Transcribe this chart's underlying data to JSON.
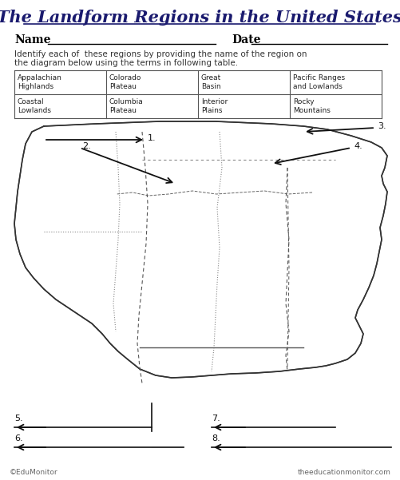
{
  "title": "The Landform Regions in the United States",
  "title_fontsize": 15,
  "title_color": "#1a1a6e",
  "title_font": "serif",
  "name_label": "Name",
  "date_label": "Date",
  "instruction": "Identify each of  these regions by providing the name of the region on\nthe diagram below using the terms in following table.",
  "table_data": [
    [
      "Appalachian\nHighlands",
      "Colorado\nPlateau",
      "Great\nBasin",
      "Pacific Ranges\nand Lowlands"
    ],
    [
      "Coastal\nLowlands",
      "Columbia\nPlateau",
      "Interior\nPlains",
      "Rocky\nMountains"
    ]
  ],
  "footer_left": "©EduMonitor",
  "footer_right": "theeducationmonitor.com",
  "bg_color": "#ffffff",
  "text_color": "#222222",
  "arrow_color": "#111111"
}
